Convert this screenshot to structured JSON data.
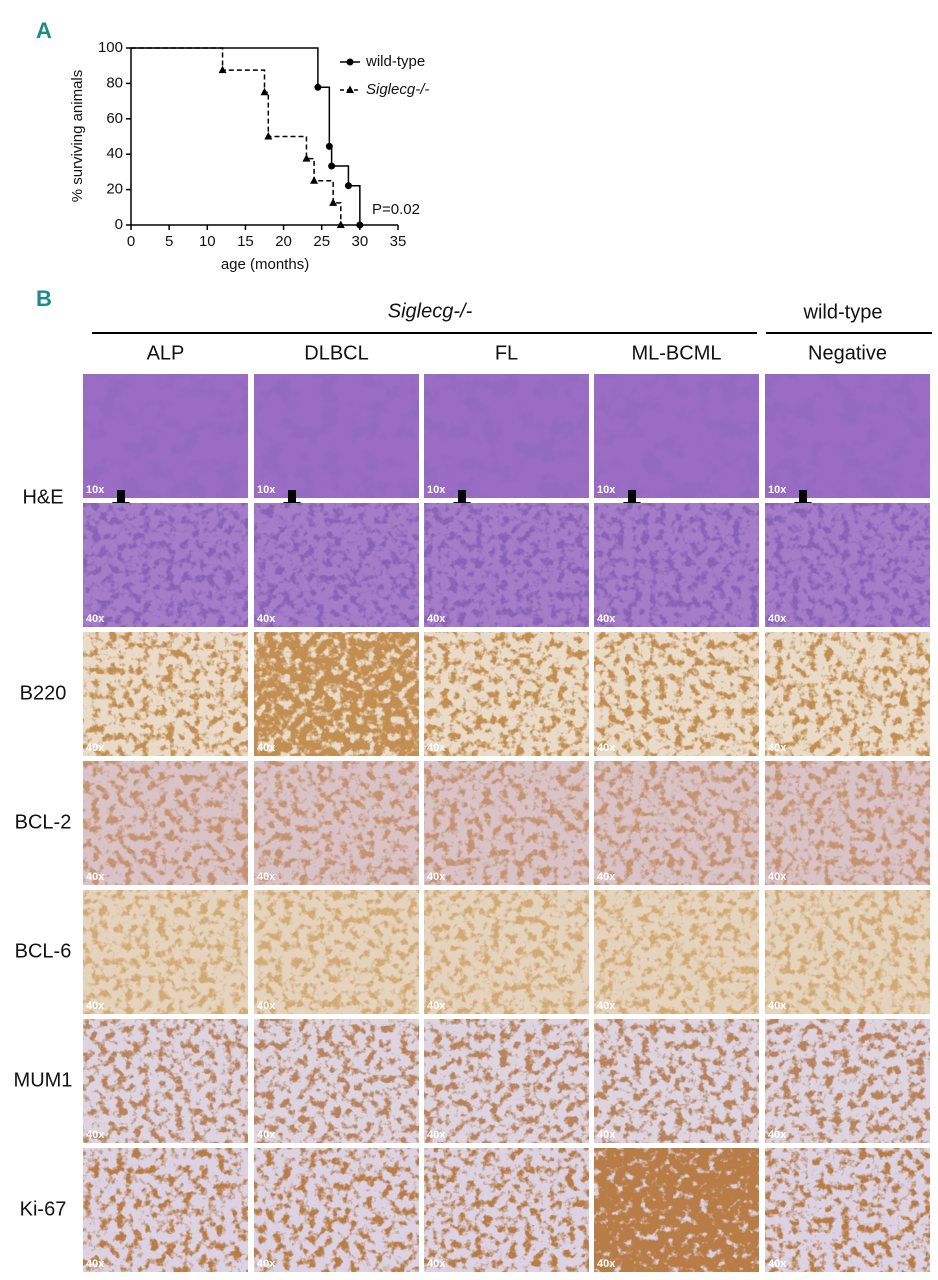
{
  "panel_a_label": "A",
  "chart_data": {
    "type": "line",
    "step": true,
    "xlabel": "age (months)",
    "ylabel": "% surviving animals",
    "xlim": [
      0,
      35
    ],
    "xticks": [
      0,
      5,
      10,
      15,
      20,
      25,
      30,
      35
    ],
    "ylim": [
      0,
      100
    ],
    "yticks": [
      0,
      20,
      40,
      60,
      80,
      100
    ],
    "legend": "upper right",
    "annotation": "P=0.02",
    "series": [
      {
        "name": "wild-type",
        "color": "#000000",
        "marker": "circle",
        "dash": false,
        "x": [
          0,
          24.5,
          26,
          26.3,
          28.5,
          30
        ],
        "values": [
          100,
          77.8,
          44.4,
          33.3,
          22.2,
          0
        ]
      },
      {
        "name": "Siglecg-/-",
        "color": "#000000",
        "marker": "triangle",
        "dash": true,
        "x": [
          0,
          12,
          17.5,
          18,
          23,
          24,
          26.5,
          27.5
        ],
        "values": [
          100,
          87.5,
          75,
          50,
          37.5,
          25,
          12.5,
          0
        ]
      }
    ]
  },
  "panel_b": {
    "label": "B",
    "groups": [
      "Siglecg-/-",
      "wild-type"
    ],
    "columns": [
      "ALP",
      "DLBCL",
      "FL",
      "ML-BCML",
      "Negative"
    ],
    "rows": [
      {
        "label": "H&E",
        "magnifications": [
          "10x",
          "40x"
        ]
      },
      {
        "label": "B220",
        "magnifications": [
          "40x"
        ]
      },
      {
        "label": "BCL-2",
        "magnifications": [
          "40x"
        ]
      },
      {
        "label": "BCL-6",
        "magnifications": [
          "40x"
        ]
      },
      {
        "label": "MUM1",
        "magnifications": [
          "40x"
        ]
      },
      {
        "label": "Ki-67",
        "magnifications": [
          "40x"
        ]
      }
    ]
  }
}
